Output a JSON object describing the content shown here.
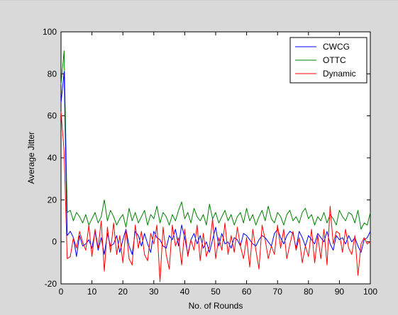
{
  "figure": {
    "background": "#d9d9d9",
    "axes_background": "#ffffff"
  },
  "chart_data": {
    "type": "line",
    "title": "",
    "xlabel": "No. of Rounds",
    "ylabel": "Average Jitter",
    "xlim": [
      0,
      100
    ],
    "ylim": [
      -20,
      100
    ],
    "xticks": [
      0,
      10,
      20,
      30,
      40,
      50,
      60,
      70,
      80,
      90,
      100
    ],
    "yticks": [
      -20,
      0,
      20,
      40,
      60,
      80,
      100
    ],
    "grid": false,
    "legend_position": "top-right",
    "series": [
      {
        "name": "CWCG",
        "color": "#0000ff",
        "x": [
          0,
          1,
          2,
          3,
          4,
          5,
          6,
          7,
          8,
          9,
          10,
          11,
          12,
          13,
          14,
          15,
          16,
          17,
          18,
          19,
          20,
          21,
          22,
          23,
          24,
          25,
          26,
          27,
          28,
          29,
          30,
          31,
          32,
          33,
          34,
          35,
          36,
          37,
          38,
          39,
          40,
          41,
          42,
          43,
          44,
          45,
          46,
          47,
          48,
          49,
          50,
          51,
          52,
          53,
          54,
          55,
          56,
          57,
          58,
          59,
          60,
          61,
          62,
          63,
          64,
          65,
          66,
          67,
          68,
          69,
          70,
          71,
          72,
          73,
          74,
          75,
          76,
          77,
          78,
          79,
          80,
          81,
          82,
          83,
          84,
          85,
          86,
          87,
          88,
          89,
          90,
          91,
          92,
          93,
          94,
          95,
          96,
          97,
          98,
          99,
          100
        ],
        "values": [
          66,
          81,
          3,
          5,
          2,
          -7,
          3,
          -2,
          -1,
          1,
          -3,
          5,
          -4,
          2,
          -6,
          4,
          -2,
          -1,
          3,
          -5,
          1,
          6,
          -2,
          -6,
          5,
          3,
          -2,
          4,
          -1,
          -5,
          5,
          2,
          1,
          -2,
          -3,
          3,
          1,
          6,
          -2,
          8,
          2,
          -6,
          1,
          4,
          -1,
          3,
          -3,
          0,
          -5,
          1,
          7,
          -2,
          4,
          -1,
          0,
          -3,
          2,
          1,
          -2,
          4,
          3,
          1,
          -1,
          -2,
          1,
          3,
          2,
          0,
          -2,
          4,
          6,
          2,
          -1,
          3,
          5,
          4,
          -3,
          5,
          2,
          -2,
          3,
          1,
          -1,
          4,
          2,
          0,
          5,
          -1,
          -4,
          3,
          1,
          2,
          -1,
          3,
          0,
          2,
          -2,
          -5,
          1,
          2,
          5
        ]
      },
      {
        "name": "OTTC",
        "color": "#008000",
        "x": [
          0,
          1,
          2,
          3,
          4,
          5,
          6,
          7,
          8,
          9,
          10,
          11,
          12,
          13,
          14,
          15,
          16,
          17,
          18,
          19,
          20,
          21,
          22,
          23,
          24,
          25,
          26,
          27,
          28,
          29,
          30,
          31,
          32,
          33,
          34,
          35,
          36,
          37,
          38,
          39,
          40,
          41,
          42,
          43,
          44,
          45,
          46,
          47,
          48,
          49,
          50,
          51,
          52,
          53,
          54,
          55,
          56,
          57,
          58,
          59,
          60,
          61,
          62,
          63,
          64,
          65,
          66,
          67,
          68,
          69,
          70,
          71,
          72,
          73,
          74,
          75,
          76,
          77,
          78,
          79,
          80,
          81,
          82,
          83,
          84,
          85,
          86,
          87,
          88,
          89,
          90,
          91,
          92,
          93,
          94,
          95,
          96,
          97,
          98,
          99,
          100
        ],
        "values": [
          75,
          91,
          14,
          15,
          10,
          14,
          12,
          9,
          13,
          8,
          11,
          14,
          9,
          12,
          20,
          10,
          15,
          12,
          8,
          11,
          13,
          7,
          16,
          10,
          14,
          9,
          12,
          15,
          8,
          13,
          11,
          17,
          9,
          14,
          12,
          8,
          13,
          10,
          15,
          19,
          11,
          14,
          9,
          16,
          12,
          10,
          13,
          8,
          18,
          11,
          14,
          9,
          12,
          15,
          10,
          13,
          8,
          12,
          14,
          9,
          16,
          10,
          13,
          8,
          12,
          15,
          10,
          17,
          11,
          9,
          14,
          12,
          8,
          13,
          15,
          10,
          12,
          9,
          14,
          16,
          11,
          13,
          8,
          12,
          10,
          14,
          9,
          13,
          11,
          8,
          15,
          12,
          10,
          14,
          13,
          9,
          15,
          6,
          9,
          8,
          14
        ]
      },
      {
        "name": "Dynamic",
        "color": "#ff0000",
        "x": [
          0,
          1,
          2,
          3,
          4,
          5,
          6,
          7,
          8,
          9,
          10,
          11,
          12,
          13,
          14,
          15,
          16,
          17,
          18,
          19,
          20,
          21,
          22,
          23,
          24,
          25,
          26,
          27,
          28,
          29,
          30,
          31,
          32,
          33,
          34,
          35,
          36,
          37,
          38,
          39,
          40,
          41,
          42,
          43,
          44,
          45,
          46,
          47,
          48,
          49,
          50,
          51,
          52,
          53,
          54,
          55,
          56,
          57,
          58,
          59,
          60,
          61,
          62,
          63,
          64,
          65,
          66,
          67,
          68,
          69,
          70,
          71,
          72,
          73,
          74,
          75,
          76,
          77,
          78,
          79,
          80,
          81,
          82,
          83,
          84,
          85,
          86,
          87,
          88,
          89,
          90,
          91,
          92,
          93,
          94,
          95,
          96,
          97,
          98,
          99,
          100
        ],
        "values": [
          62,
          43,
          -8,
          -7,
          2,
          -3,
          5,
          0,
          -4,
          8,
          -7,
          6,
          -3,
          10,
          -14,
          7,
          -5,
          9,
          -6,
          3,
          -10,
          6,
          -8,
          -11,
          8,
          -3,
          5,
          -6,
          -9,
          4,
          -1,
          8,
          -19,
          7,
          -6,
          -13,
          8,
          -2,
          2,
          -11,
          6,
          -7,
          1,
          -4,
          8,
          -9,
          4,
          -7,
          -2,
          11,
          -8,
          2,
          -4,
          9,
          -6,
          3,
          -5,
          7,
          -2,
          -8,
          2,
          -12,
          6,
          -4,
          -13,
          8,
          1,
          -8,
          -2,
          -6,
          8,
          -3,
          6,
          -8,
          -1,
          5,
          -4,
          2,
          -10,
          -2,
          -7,
          6,
          -10,
          3,
          -8,
          6,
          -11,
          17,
          -1,
          5,
          4,
          -5,
          6,
          -3,
          -6,
          3,
          -16,
          -1,
          2,
          -1,
          0
        ]
      }
    ]
  }
}
